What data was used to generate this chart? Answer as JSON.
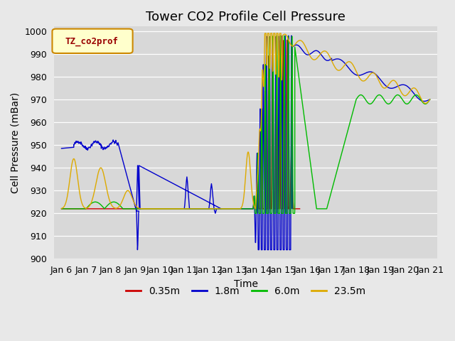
{
  "title": "Tower CO2 Profile Cell Pressure",
  "xlabel": "Time",
  "ylabel": "Cell Pressure (mBar)",
  "ylim": [
    900,
    1002
  ],
  "yticks": [
    900,
    910,
    920,
    930,
    940,
    950,
    960,
    970,
    980,
    990,
    1000
  ],
  "x_tick_labels": [
    "Jan 6",
    "Jan 7",
    "Jan 8",
    "Jan 9",
    "Jan 10",
    "Jan 11",
    "Jan 12",
    "Jan 13",
    "Jan 14",
    "Jan 15",
    "Jan 16",
    "Jan 17",
    "Jan 18",
    "Jan 19",
    "Jan 20",
    "Jan 21"
  ],
  "legend_label": "TZ_co2prof",
  "series_labels": [
    "0.35m",
    "1.8m",
    "6.0m",
    "23.5m"
  ],
  "series_colors": [
    "#cc0000",
    "#0000cc",
    "#00bb00",
    "#ddaa00"
  ],
  "background_color": "#e8e8e8",
  "plot_bg_color": "#d8d8d8",
  "title_fontsize": 13,
  "axis_fontsize": 10,
  "tick_fontsize": 9
}
